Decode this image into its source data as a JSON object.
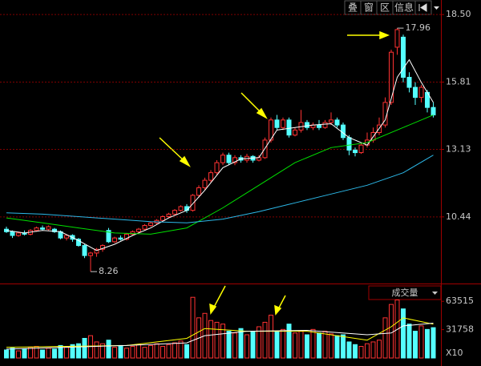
{
  "toolbar": {
    "buttons": [
      "叠",
      "窗",
      "区",
      "信息"
    ]
  },
  "chart_data": [
    {
      "type": "candlestick",
      "up_color": "#ff3232",
      "down_color": "#54ffff",
      "open": [
        9.95,
        9.85,
        9.7,
        9.8,
        9.75,
        9.9,
        10.0,
        9.95,
        9.95,
        9.85,
        9.6,
        9.7,
        9.55,
        9.3,
        8.9,
        9.0,
        9.15,
        9.9,
        9.45,
        9.6,
        9.55,
        9.75,
        9.85,
        9.95,
        10.1,
        10.2,
        10.3,
        10.45,
        10.55,
        10.7,
        10.85,
        10.7,
        11.3,
        11.6,
        11.9,
        12.2,
        12.6,
        12.9,
        12.6,
        12.8,
        12.7,
        12.85,
        12.7,
        12.8,
        13.5,
        14.3,
        14.0,
        14.3,
        13.7,
        13.9,
        14.2,
        14.0,
        14.1,
        14.0,
        14.2,
        14.3,
        14.1,
        13.6,
        13.1,
        13.0,
        13.3,
        13.5,
        13.8,
        14.1,
        15.0,
        17.2,
        17.6,
        16.0,
        15.6,
        15.2,
        15.4,
        14.8
      ],
      "high": [
        10.05,
        9.9,
        9.85,
        9.9,
        9.95,
        10.05,
        10.1,
        10.1,
        10.0,
        9.9,
        9.75,
        9.75,
        9.6,
        9.35,
        9.05,
        9.2,
        9.35,
        10.0,
        9.65,
        9.7,
        9.8,
        9.9,
        10.0,
        10.15,
        10.25,
        10.35,
        10.5,
        10.6,
        10.75,
        10.9,
        10.95,
        11.35,
        11.7,
        12.0,
        12.3,
        12.7,
        13.0,
        13.0,
        12.9,
        12.9,
        12.95,
        12.9,
        12.9,
        13.6,
        14.4,
        14.5,
        14.4,
        14.4,
        14.0,
        14.7,
        14.3,
        14.2,
        14.3,
        14.3,
        14.6,
        14.4,
        14.2,
        13.7,
        13.2,
        13.4,
        13.8,
        14.0,
        14.4,
        15.2,
        17.1,
        17.96,
        17.7,
        16.2,
        15.8,
        15.7,
        15.5,
        15.0
      ],
      "low": [
        9.8,
        9.6,
        9.65,
        9.7,
        9.7,
        9.85,
        9.9,
        9.9,
        9.8,
        9.55,
        9.5,
        9.45,
        9.25,
        8.8,
        8.26,
        8.85,
        9.05,
        9.4,
        9.4,
        9.5,
        9.5,
        9.7,
        9.8,
        9.9,
        10.05,
        10.15,
        10.25,
        10.4,
        10.5,
        10.65,
        10.6,
        10.65,
        11.2,
        11.5,
        11.8,
        12.1,
        12.5,
        12.5,
        12.5,
        12.6,
        12.6,
        12.6,
        12.65,
        12.75,
        13.4,
        13.9,
        13.9,
        13.6,
        13.65,
        13.8,
        13.9,
        13.9,
        13.9,
        13.95,
        14.1,
        14.0,
        13.5,
        12.9,
        12.85,
        12.95,
        13.2,
        13.4,
        13.7,
        14.0,
        14.9,
        16.9,
        15.8,
        15.4,
        14.9,
        15.0,
        14.6,
        14.4
      ],
      "close": [
        9.85,
        9.7,
        9.8,
        9.75,
        9.9,
        10.0,
        9.95,
        10.05,
        9.85,
        9.6,
        9.7,
        9.55,
        9.3,
        8.9,
        9.0,
        9.15,
        9.3,
        9.45,
        9.6,
        9.55,
        9.75,
        9.85,
        9.95,
        10.1,
        10.2,
        10.3,
        10.45,
        10.55,
        10.7,
        10.85,
        10.7,
        11.3,
        11.6,
        11.9,
        12.2,
        12.6,
        12.9,
        12.6,
        12.8,
        12.7,
        12.85,
        12.7,
        12.8,
        13.5,
        14.3,
        14.0,
        14.3,
        13.7,
        13.9,
        14.2,
        14.0,
        14.1,
        14.0,
        14.2,
        14.3,
        14.1,
        13.6,
        13.1,
        13.0,
        13.3,
        13.5,
        13.8,
        14.1,
        15.0,
        17.0,
        17.9,
        16.0,
        15.6,
        15.2,
        15.6,
        14.8,
        14.5
      ],
      "lines": [
        {
          "color": "#ffffff",
          "x": [
            0,
            3,
            6,
            9,
            12,
            15,
            18,
            21,
            24,
            27,
            30,
            33,
            36,
            39,
            42,
            45,
            48,
            51,
            54,
            57,
            60,
            63,
            65,
            67,
            69,
            71
          ],
          "values": [
            9.9,
            9.8,
            9.9,
            9.85,
            9.5,
            9.1,
            9.35,
            9.7,
            10.0,
            10.4,
            10.7,
            11.5,
            12.4,
            12.75,
            12.8,
            13.9,
            14.0,
            14.1,
            14.15,
            13.6,
            13.3,
            14.3,
            16.0,
            16.7,
            15.8,
            15.0
          ]
        },
        {
          "color": "#00e000",
          "x": [
            0,
            6,
            12,
            18,
            24,
            30,
            36,
            42,
            48,
            54,
            60,
            66,
            71
          ],
          "values": [
            10.4,
            10.2,
            10.0,
            9.8,
            9.75,
            10.0,
            10.8,
            11.7,
            12.6,
            13.2,
            13.4,
            14.0,
            14.5
          ]
        },
        {
          "color": "#2cb8e8",
          "x": [
            0,
            6,
            12,
            18,
            24,
            30,
            36,
            42,
            48,
            54,
            60,
            66,
            71
          ],
          "values": [
            10.6,
            10.55,
            10.45,
            10.35,
            10.25,
            10.2,
            10.35,
            10.65,
            11.0,
            11.35,
            11.7,
            12.2,
            12.9
          ]
        }
      ],
      "annotations": [
        {
          "x": 65,
          "value": 17.96,
          "label": "17.96"
        },
        {
          "x": 14,
          "value": 8.26,
          "label": "8.26"
        }
      ],
      "ylim": [
        7.85,
        19.08
      ],
      "yticks": [
        {
          "value": 18.5,
          "label": "18.50"
        },
        {
          "value": 15.81,
          "label": "15.81"
        },
        {
          "value": 13.13,
          "label": "13.13"
        },
        {
          "value": 10.44,
          "label": "10.44"
        }
      ],
      "grid": true
    },
    {
      "type": "bar",
      "title": "成交量",
      "unit_label": "X10",
      "values": [
        9000,
        11000,
        8000,
        10000,
        12000,
        13000,
        9000,
        11000,
        10000,
        14000,
        12000,
        15000,
        16000,
        22000,
        25000,
        18000,
        16000,
        20000,
        12000,
        14000,
        11000,
        13000,
        15000,
        12000,
        14000,
        16000,
        13000,
        15000,
        17000,
        19000,
        15000,
        68000,
        45000,
        50000,
        42000,
        40000,
        38000,
        30000,
        28000,
        33000,
        26000,
        30000,
        35000,
        40000,
        48000,
        30000,
        32000,
        38000,
        28000,
        30000,
        26000,
        32000,
        28000,
        30000,
        27000,
        25000,
        26000,
        18000,
        15000,
        13000,
        16000,
        18000,
        20000,
        45000,
        60000,
        65000,
        55000,
        38000,
        30000,
        36000,
        32000,
        34000
      ],
      "lines": [
        {
          "color": "#ffff00",
          "x": [
            0,
            10,
            20,
            30,
            33,
            40,
            50,
            60,
            64,
            66,
            71
          ],
          "values": [
            12000,
            13000,
            14000,
            22000,
            33000,
            30000,
            30000,
            20000,
            35000,
            45000,
            38000
          ]
        },
        {
          "color": "#ffffff",
          "x": [
            0,
            10,
            20,
            30,
            33,
            40,
            50,
            60,
            64,
            66,
            71
          ],
          "values": [
            10000,
            12000,
            14000,
            17000,
            25000,
            30000,
            31000,
            26000,
            28000,
            36000,
            39000
          ]
        }
      ],
      "ylim": [
        0,
        81660
      ],
      "yticks": [
        63515,
        31758
      ]
    }
  ]
}
